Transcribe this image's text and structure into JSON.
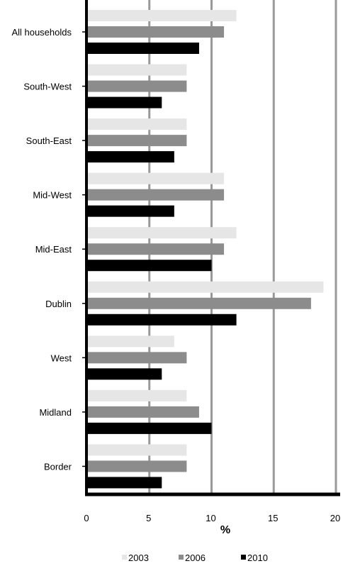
{
  "chart_data": {
    "type": "bar",
    "orientation": "horizontal",
    "categories": [
      "All households",
      "South-West",
      "South-East",
      "Mid-West",
      "Mid-East",
      "Dublin",
      "West",
      "Midland",
      "Border"
    ],
    "series": [
      {
        "name": "2003",
        "color": "#e6e6e6",
        "values": [
          12,
          8,
          8,
          11,
          12,
          19,
          7,
          8,
          8
        ]
      },
      {
        "name": "2006",
        "color": "#8c8c8c",
        "values": [
          11,
          8,
          8,
          11,
          11,
          18,
          8,
          9,
          8
        ]
      },
      {
        "name": "2010",
        "color": "#000000",
        "values": [
          9,
          6,
          7,
          7,
          10,
          12,
          6,
          10,
          6
        ]
      }
    ],
    "xlabel": "%",
    "xlim": [
      0,
      20
    ],
    "xticks": [
      "0",
      "5",
      "10",
      "15",
      "20"
    ],
    "grid": true,
    "legend": "bottom"
  }
}
